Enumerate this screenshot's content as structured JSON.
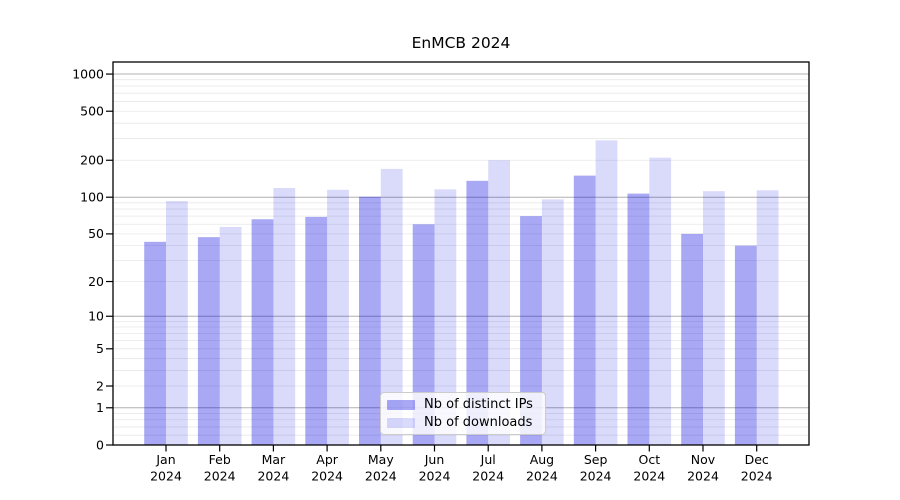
{
  "chart_data": {
    "type": "bar",
    "title": "EnMCB 2024",
    "categories": [
      "Jan",
      "Feb",
      "Mar",
      "Apr",
      "May",
      "Jun",
      "Jul",
      "Aug",
      "Sep",
      "Oct",
      "Nov",
      "Dec"
    ],
    "category_year": "2024",
    "series": [
      {
        "name": "Nb of distinct IPs",
        "values": [
          43,
          47,
          66,
          69,
          101,
          60,
          136,
          70,
          150,
          107,
          50,
          40
        ],
        "fill": "#0000e0",
        "fill_alpha": 0.34,
        "flat_color": "#a9a9f4"
      },
      {
        "name": "Nb of downloads",
        "values": [
          93,
          57,
          119,
          115,
          170,
          116,
          200,
          96,
          290,
          210,
          112,
          114
        ],
        "fill": "#0000e0",
        "fill_alpha": 0.145,
        "flat_color": "#dcdcf9"
      }
    ],
    "y_axis": {
      "scale": "symlog-log1p",
      "ticks": [
        0,
        1,
        2,
        5,
        10,
        20,
        50,
        100,
        200,
        500,
        1000
      ],
      "tick_labels": [
        "0",
        "1",
        "2",
        "5",
        "10",
        "20",
        "50",
        "100",
        "200",
        "500",
        "1000"
      ],
      "max": 1252,
      "major_grid": [
        1,
        10,
        100,
        1000
      ],
      "minor_grid": [
        0.2,
        0.4,
        0.6,
        0.8,
        2,
        3,
        4,
        5,
        6,
        7,
        8,
        9,
        20,
        30,
        40,
        50,
        60,
        70,
        80,
        90,
        200,
        300,
        400,
        500,
        600,
        700,
        800,
        900
      ]
    },
    "x_axis": {
      "label_line2": "2024"
    },
    "legend": {
      "position": "lower center"
    },
    "grid": true,
    "colors": {
      "grid_major": "#b0b0b0",
      "grid_minor": "#e8e8e8",
      "spine": "#000000",
      "text": "#000000"
    }
  }
}
